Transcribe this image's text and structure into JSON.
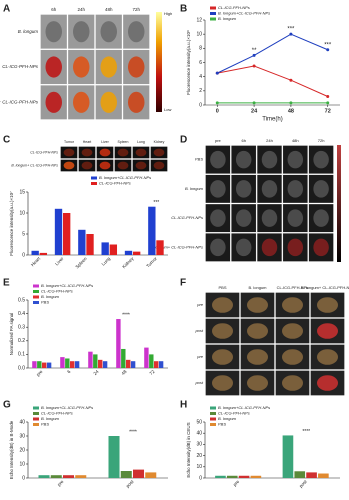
{
  "panels": {
    "A": {
      "letter": "A",
      "columns": [
        "6h",
        "24h",
        "48h",
        "72h"
      ],
      "rows": [
        "B. longum",
        "CL-ICG-PFH-NPs",
        "B. longum+ CL-ICG-PFH-NPs"
      ],
      "colorbar": {
        "high": "High",
        "low": "Low"
      }
    },
    "C_images": {
      "letter": "C",
      "columns": [
        "Tumor",
        "Heart",
        "Liver",
        "Spleen",
        "Lung",
        "Kidney"
      ],
      "rows": [
        "CL-ICG-PFH-NPs",
        "B. longum+ CL-ICG-PFH-NPs"
      ]
    },
    "D": {
      "letter": "D",
      "columns": [
        "pre",
        "6h",
        "24h",
        "48h",
        "72h"
      ],
      "rows": [
        "PBS",
        "B. longum",
        "CL-ICG-PFH-NPs",
        "B. longum+ CL-ICG-PFH-NPs"
      ]
    },
    "F": {
      "letter": "F",
      "columns": [
        "PBS",
        "B. longum",
        "CL-ICG-PFH-NPs",
        "B. longum+ CL-ICG-PFH-NPs"
      ],
      "rows": [
        "pre",
        "post",
        "pre",
        "post"
      ]
    }
  },
  "chart_data": [
    {
      "type": "line",
      "letter": "B",
      "x_label": "Time(h)",
      "y_label": "Fluorescence intensity(a.u.)×10⁸",
      "x": [
        0,
        24,
        48,
        72
      ],
      "xlim": [
        -8,
        80
      ],
      "xticks": [
        0,
        24,
        48,
        72
      ],
      "ylim": [
        0,
        12
      ],
      "yticks": [
        0,
        2,
        4,
        6,
        8,
        10,
        12
      ],
      "legend": "upper left",
      "series": [
        {
          "name": "CL-ICG-PFH-NPs",
          "color": "#d62728",
          "values": [
            4.5,
            5.5,
            3.5,
            1.2
          ]
        },
        {
          "name": "B. longum+CL-ICG-PFH-NPs",
          "color": "#1f3fbf",
          "values": [
            4.5,
            7,
            10,
            7.8
          ]
        },
        {
          "name": "B. longum",
          "color": "#3cb043",
          "values": [
            0.3,
            0.3,
            0.3,
            0.3
          ]
        }
      ],
      "annotations": [
        {
          "text": "**",
          "x": 24
        },
        {
          "text": "***",
          "x": 48
        },
        {
          "text": "***",
          "x": 72
        }
      ]
    },
    {
      "type": "bar",
      "letter": "",
      "y_label": "Fluorescence intensity(a.u.)×10⁷",
      "categories": [
        "Heart",
        "Liver",
        "Spleen",
        "Lung",
        "Kidney",
        "Tumor"
      ],
      "ylim": [
        0,
        15
      ],
      "yticks": [
        0,
        5,
        10,
        15
      ],
      "legend": "upper right",
      "series": [
        {
          "name": "B. longum+CL-ICG-PFH-NPs",
          "color": "#2040d0",
          "values": [
            1,
            11,
            6,
            3,
            1,
            11.5
          ]
        },
        {
          "name": "CL-ICG-PFH-NPs",
          "color": "#e02020",
          "values": [
            0.5,
            10,
            5,
            2.5,
            0.8,
            3.5
          ]
        }
      ],
      "annotations": [
        {
          "text": "***",
          "x": "Tumor"
        }
      ]
    },
    {
      "type": "bar",
      "letter": "E",
      "y_label": "Normalized PA signal",
      "categories": [
        "pre",
        "6",
        "24",
        "48",
        "72"
      ],
      "ylim": [
        0,
        0.5
      ],
      "yticks": [
        {
          "value": 0,
          "label": "0.0"
        },
        0.1,
        0.2,
        0.3,
        0.4,
        0.5
      ],
      "legend": "upper left",
      "series": [
        {
          "name": "B. longum+CL-ICG-PFH-NPs",
          "color": "#cc33cc",
          "values": [
            0.05,
            0.08,
            0.12,
            0.36,
            0.15
          ]
        },
        {
          "name": "CL-ICG-PFH-NPs",
          "color": "#33aa33",
          "values": [
            0.05,
            0.07,
            0.1,
            0.14,
            0.1
          ]
        },
        {
          "name": "B. longum",
          "color": "#e03030",
          "values": [
            0.04,
            0.05,
            0.06,
            0.06,
            0.05
          ]
        },
        {
          "name": "PBS",
          "color": "#3050d0",
          "values": [
            0.04,
            0.05,
            0.05,
            0.05,
            0.05
          ]
        }
      ],
      "annotations": [
        {
          "text": "****",
          "x": "48"
        }
      ]
    },
    {
      "type": "bar",
      "letter": "G",
      "y_label": "Echo Intensity(dB) in B-Mode",
      "categories": [
        "pre",
        "post"
      ],
      "ylim": [
        0,
        40
      ],
      "yticks": [
        0,
        10,
        20,
        30,
        40
      ],
      "legend": "upper left",
      "series": [
        {
          "name": "B. longum+CL-ICG-PFH-NPs",
          "color": "#3aa57a",
          "values": [
            2,
            30
          ]
        },
        {
          "name": "CL-ICG-PFH-NPs",
          "color": "#5a8a3a",
          "values": [
            2,
            5
          ]
        },
        {
          "name": "B. longum",
          "color": "#d03030",
          "values": [
            2,
            6
          ]
        },
        {
          "name": "PBS",
          "color": "#e08a30",
          "values": [
            2,
            4
          ]
        }
      ],
      "annotations": [
        {
          "text": "****",
          "x": "post"
        }
      ]
    },
    {
      "type": "bar",
      "letter": "H",
      "y_label": "Echo Intensity(dB) in CEUS",
      "categories": [
        "pre",
        "post"
      ],
      "ylim": [
        0,
        50
      ],
      "yticks": [
        0,
        10,
        20,
        30,
        40,
        50
      ],
      "legend": "upper left",
      "series": [
        {
          "name": "B. longum+CL-ICG-PFH-NPs",
          "color": "#3aa57a",
          "values": [
            2,
            38
          ]
        },
        {
          "name": "CL-ICG-PFH-NPs",
          "color": "#5a8a3a",
          "values": [
            2,
            6
          ]
        },
        {
          "name": "B. longum",
          "color": "#d03030",
          "values": [
            2,
            5
          ]
        },
        {
          "name": "PBS",
          "color": "#e08a30",
          "values": [
            2,
            4
          ]
        }
      ],
      "annotations": [
        {
          "text": "****",
          "x": "post"
        }
      ]
    }
  ]
}
